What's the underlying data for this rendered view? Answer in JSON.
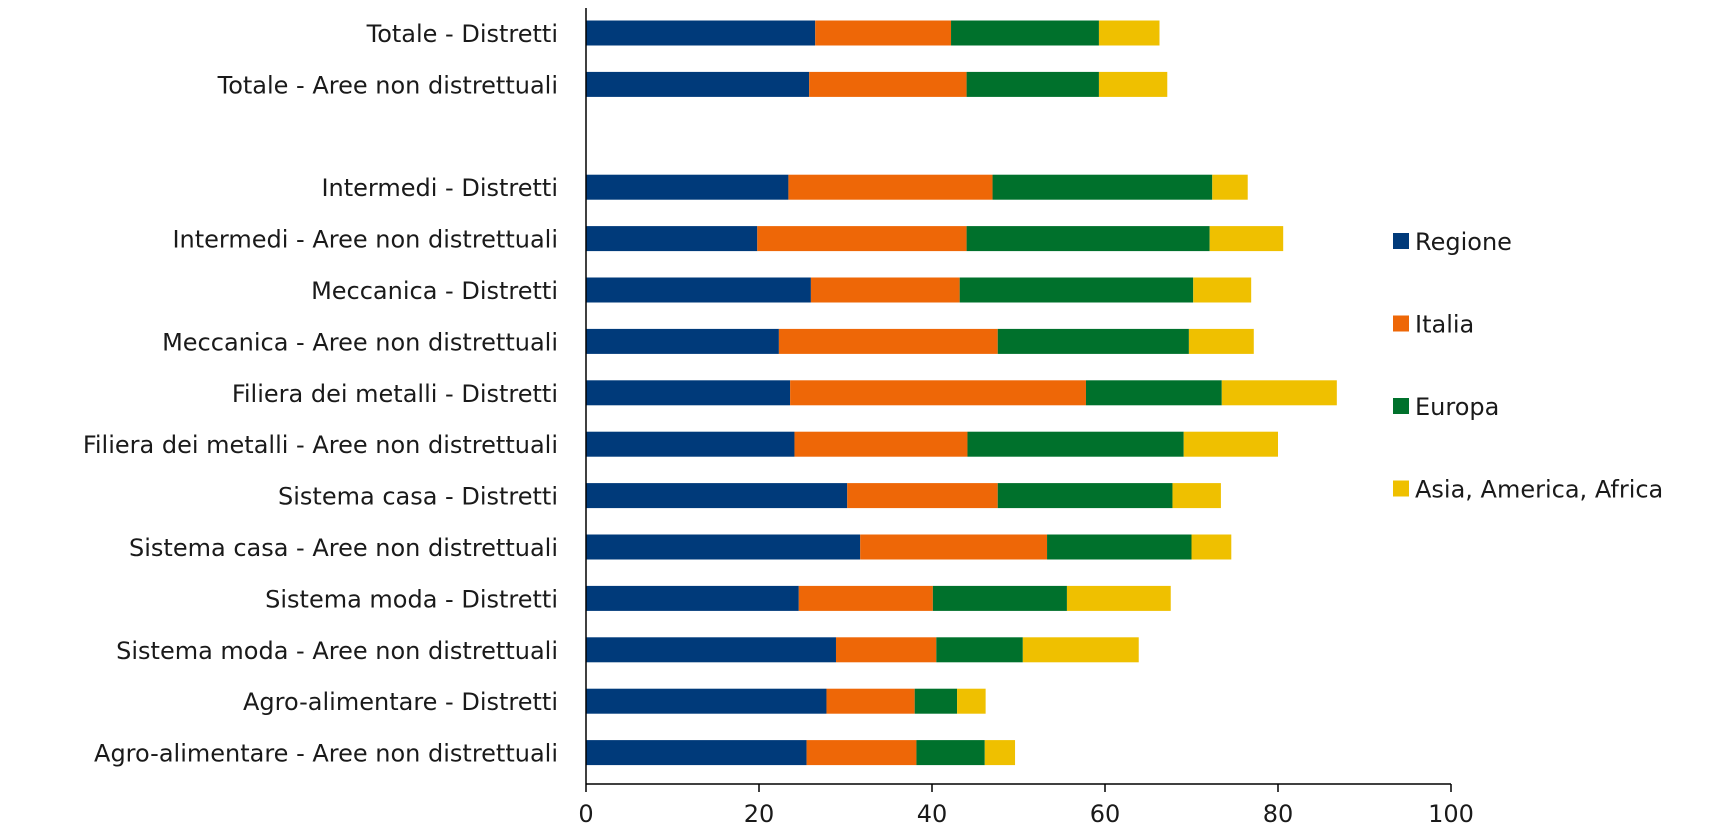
{
  "chart_data": {
    "type": "bar",
    "orientation": "horizontal",
    "stacked": true,
    "title": "",
    "xlabel": "",
    "ylabel": "",
    "xlim": [
      0,
      100
    ],
    "x_ticks": [
      0,
      20,
      40,
      60,
      80,
      100
    ],
    "grid": false,
    "legend_position": "right",
    "categories": [
      "Totale - Distretti",
      "Totale - Aree non distrettuali",
      "",
      "Intermedi - Distretti",
      "Intermedi - Aree non distrettuali",
      "Meccanica - Distretti",
      "Meccanica - Aree non distrettuali",
      "Filiera dei metalli - Distretti",
      "Filiera dei metalli - Aree non distrettuali",
      "Sistema casa - Distretti",
      "Sistema casa - Aree non distrettuali",
      "Sistema moda - Distretti",
      "Sistema moda - Aree non distrettuali",
      "Agro-alimentare - Distretti",
      "Agro-alimentare - Aree non distrettuali"
    ],
    "series": [
      {
        "name": "Regione",
        "color": "#003a7a",
        "values": [
          26.5,
          25.8,
          null,
          23.4,
          19.8,
          26.0,
          22.3,
          23.6,
          24.1,
          30.2,
          31.7,
          24.6,
          28.9,
          27.8,
          25.5
        ]
      },
      {
        "name": "Italia",
        "color": "#ee6707",
        "values": [
          15.7,
          18.2,
          null,
          23.6,
          24.2,
          17.2,
          25.3,
          34.2,
          20.0,
          17.4,
          21.6,
          15.5,
          11.6,
          10.2,
          12.7
        ]
      },
      {
        "name": "Europa",
        "color": "#00712c",
        "values": [
          17.1,
          15.3,
          null,
          25.4,
          28.1,
          27.0,
          22.1,
          15.7,
          25.0,
          20.2,
          16.7,
          15.5,
          10.0,
          4.9,
          7.9
        ]
      },
      {
        "name": "Asia, America, Africa",
        "color": "#efc000",
        "values": [
          7.0,
          7.9,
          null,
          4.1,
          8.5,
          6.7,
          7.5,
          13.3,
          10.9,
          5.6,
          4.6,
          12.0,
          13.4,
          3.3,
          3.5
        ]
      }
    ]
  }
}
